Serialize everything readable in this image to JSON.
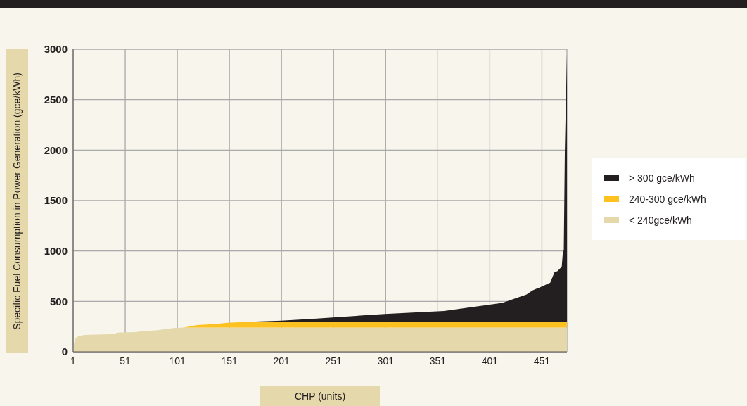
{
  "chart_data": {
    "type": "area",
    "stacked": true,
    "xlabel": "CHP (units)",
    "ylabel": "Specific Fuel Consumption in Power Generation (gce/kWh)",
    "x": [
      1,
      3,
      6,
      12,
      41,
      43,
      61,
      70,
      81,
      97,
      107,
      120,
      138,
      149,
      176,
      201,
      235,
      300,
      357,
      413,
      429,
      436,
      442,
      449,
      459,
      463,
      466,
      470,
      471,
      472,
      473,
      475
    ],
    "series": [
      {
        "name": "< 240gce/kWh",
        "color": "#e5d8aa",
        "values": [
          40,
          130,
          155,
          167,
          176,
          190,
          195,
          207,
          212,
          235,
          240,
          240,
          240,
          240,
          240,
          240,
          240,
          240,
          240,
          240,
          240,
          240,
          240,
          240,
          240,
          240,
          240,
          240,
          240,
          240,
          240,
          240
        ]
      },
      {
        "name": "240-300 gce/kWh",
        "color": "#fdc220",
        "values": [
          0,
          0,
          0,
          0,
          0,
          0,
          0,
          0,
          0,
          0,
          0,
          25,
          35,
          48,
          60,
          60,
          60,
          60,
          60,
          60,
          60,
          60,
          60,
          60,
          60,
          60,
          60,
          60,
          60,
          60,
          60,
          60
        ]
      },
      {
        "name": "> 300 gce/kWh",
        "color": "#231f20",
        "values": [
          0,
          0,
          0,
          0,
          0,
          0,
          0,
          0,
          0,
          0,
          0,
          0,
          0,
          0,
          0,
          8,
          30,
          75,
          105,
          185,
          242,
          266,
          309,
          339,
          385,
          488,
          500,
          545,
          674,
          708,
          1692,
          2650
        ]
      }
    ],
    "xlim": [
      1,
      475
    ],
    "xticks": [
      1,
      51,
      101,
      151,
      201,
      251,
      301,
      351,
      401,
      451
    ],
    "ylim": [
      0,
      3000
    ],
    "yticks": [
      0,
      500,
      1000,
      1500,
      2000,
      2500,
      3000
    ],
    "grid": true,
    "legend": "right"
  }
}
